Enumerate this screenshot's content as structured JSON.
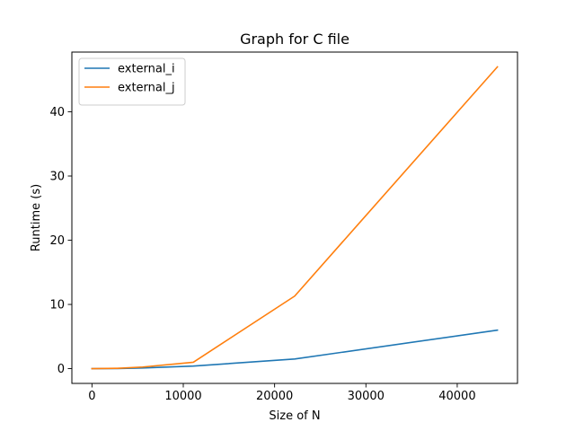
{
  "chart_data": {
    "type": "line",
    "title": "Graph for C file",
    "xlabel": "Size of N",
    "ylabel": "Runtime (s)",
    "xlim": [
      -2200,
      46600
    ],
    "ylim": [
      -2.3,
      49.3
    ],
    "xticks": [
      0,
      10000,
      20000,
      30000,
      40000
    ],
    "yticks": [
      0,
      10,
      20,
      30,
      40
    ],
    "grid": false,
    "legend_position": "top-left",
    "series": [
      {
        "name": "external_i",
        "color": "#1f77b4",
        "x": [
          0,
          2775,
          5550,
          11100,
          22200,
          44400
        ],
        "y": [
          0.0,
          0.02,
          0.1,
          0.4,
          1.5,
          6.0
        ]
      },
      {
        "name": "external_j",
        "color": "#ff7f0e",
        "x": [
          0,
          2775,
          5550,
          11100,
          22200,
          44400
        ],
        "y": [
          0.0,
          0.05,
          0.25,
          1.0,
          11.3,
          47.0
        ]
      }
    ]
  }
}
